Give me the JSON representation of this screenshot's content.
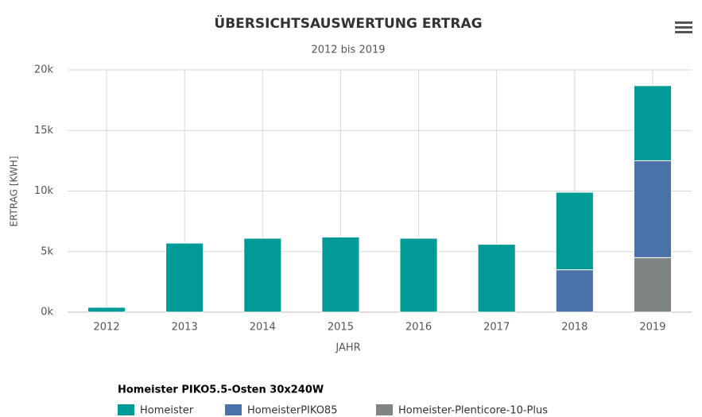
{
  "chart_data": {
    "type": "stacked_bar",
    "title": "ÜBERSICHTSAUSWERTUNG ERTRAG",
    "subtitle": "2012 bis 2019",
    "x_label": "JAHR",
    "y_label": "ERTRAG [KWH]",
    "legend_title": "Homeister PIKO5.5-Osten 30x240W",
    "categories": [
      "2012",
      "2013",
      "2014",
      "2015",
      "2016",
      "2017",
      "2018",
      "2019"
    ],
    "series": [
      {
        "name": "Homeister",
        "color": "#009b98",
        "values": [
          400,
          5700,
          6100,
          6200,
          6100,
          5600,
          6400,
          6200
        ]
      },
      {
        "name": "HomeisterPIKO85",
        "color": "#4b72a8",
        "values": [
          null,
          null,
          null,
          null,
          null,
          null,
          3500,
          8000
        ]
      },
      {
        "name": "Homeister-Plenticore-10-Plus",
        "color": "#7f8584",
        "values": [
          null,
          null,
          null,
          null,
          null,
          null,
          null,
          4500
        ]
      }
    ],
    "ylim": [
      0,
      20000
    ],
    "yticks": [
      {
        "value": 0,
        "label": "0k"
      },
      {
        "value": 5000,
        "label": "5k"
      },
      {
        "value": 10000,
        "label": "10k"
      },
      {
        "value": 15000,
        "label": "15k"
      },
      {
        "value": 20000,
        "label": "20k"
      }
    ],
    "grid": true
  }
}
